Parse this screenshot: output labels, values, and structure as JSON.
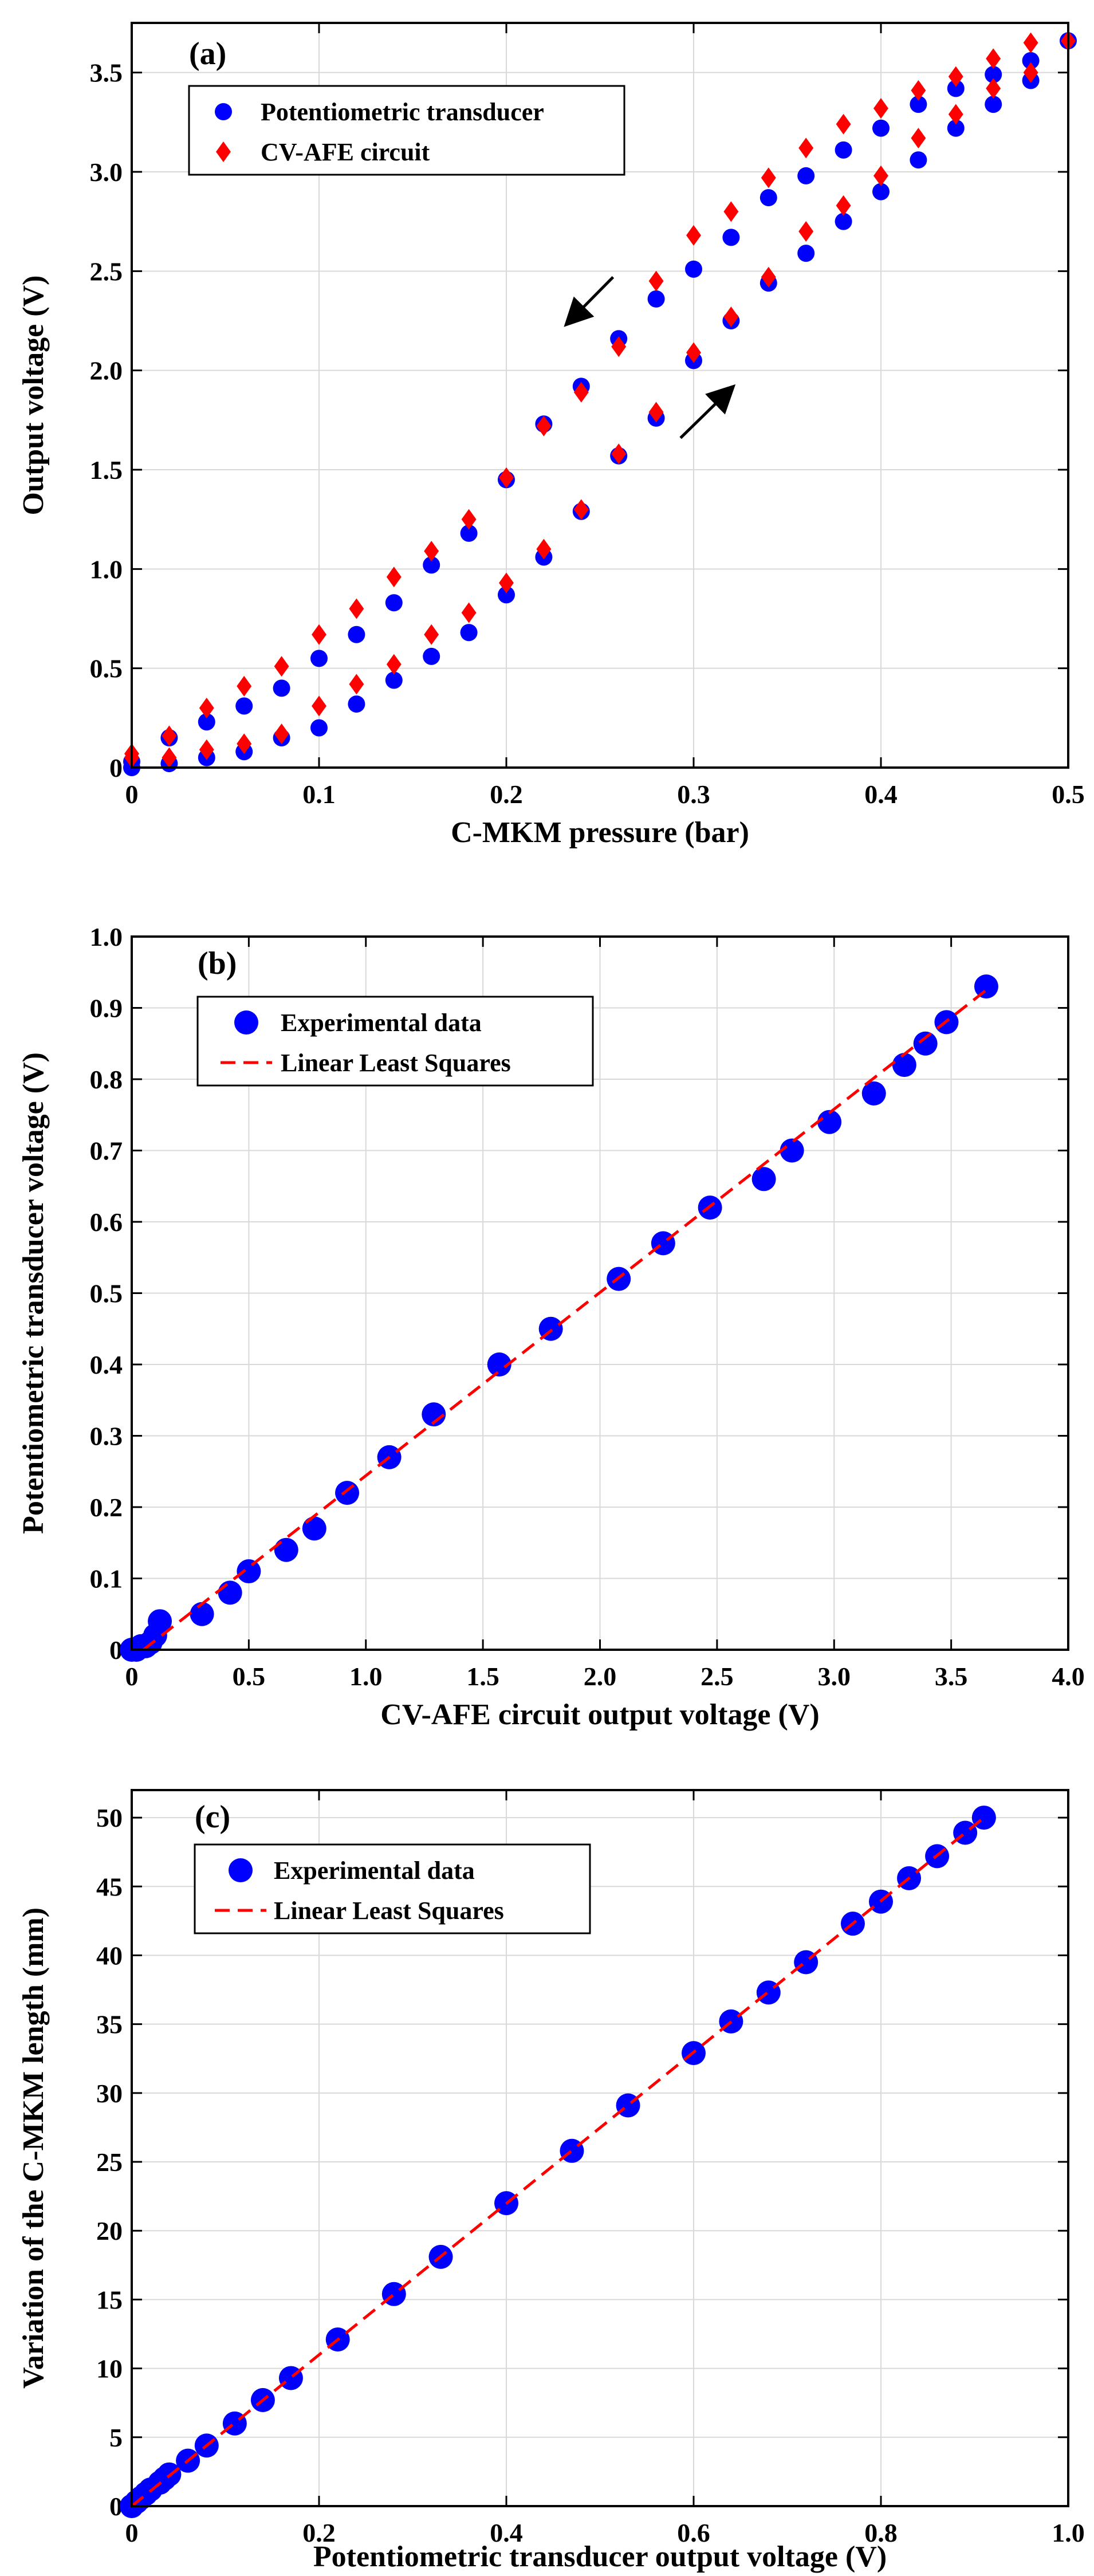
{
  "chart_data": [
    {
      "panel": "(a)",
      "type": "scatter",
      "xlabel": "C-MKM pressure (bar)",
      "ylabel": "Output voltage (V)",
      "xlim": [
        0,
        0.5
      ],
      "ylim": [
        0,
        3.75
      ],
      "xticks": [
        "0",
        "0.1",
        "0.2",
        "0.3",
        "0.4",
        "0.5"
      ],
      "yticks": [
        "0",
        "0.5",
        "1.0",
        "1.5",
        "2.0",
        "2.5",
        "3.0",
        "3.5"
      ],
      "grid": true,
      "legend_position": "top-left",
      "series": [
        {
          "name": "Potentiometric transducer",
          "marker": "circle",
          "color": "#0000ff",
          "x": [
            0,
            0.02,
            0.04,
            0.06,
            0.08,
            0.1,
            0.12,
            0.14,
            0.16,
            0.18,
            0.2,
            0.22,
            0.24,
            0.26,
            0.28,
            0.3,
            0.32,
            0.34,
            0.36,
            0.38,
            0.4,
            0.42,
            0.44,
            0.46,
            0.48,
            0.5,
            0.48,
            0.46,
            0.44,
            0.42,
            0.4,
            0.38,
            0.36,
            0.34,
            0.32,
            0.3,
            0.28,
            0.26,
            0.24,
            0.22,
            0.2,
            0.18,
            0.16,
            0.14,
            0.12,
            0.1,
            0.08,
            0.06,
            0.04,
            0.02,
            0
          ],
          "y": [
            0.0,
            0.02,
            0.05,
            0.08,
            0.15,
            0.2,
            0.32,
            0.44,
            0.56,
            0.68,
            0.87,
            1.06,
            1.29,
            1.57,
            1.76,
            2.05,
            2.25,
            2.44,
            2.59,
            2.75,
            2.9,
            3.06,
            3.22,
            3.34,
            3.46,
            3.66,
            3.56,
            3.49,
            3.42,
            3.34,
            3.22,
            3.11,
            2.98,
            2.87,
            2.67,
            2.51,
            2.36,
            2.16,
            1.92,
            1.73,
            1.45,
            1.18,
            1.02,
            0.83,
            0.67,
            0.55,
            0.4,
            0.31,
            0.23,
            0.15,
            0.03
          ]
        },
        {
          "name": "CV-AFE circuit",
          "marker": "diamond",
          "color": "#ff0000",
          "x": [
            0,
            0.02,
            0.04,
            0.06,
            0.08,
            0.1,
            0.12,
            0.14,
            0.16,
            0.18,
            0.2,
            0.22,
            0.24,
            0.26,
            0.28,
            0.3,
            0.32,
            0.34,
            0.36,
            0.38,
            0.4,
            0.42,
            0.44,
            0.46,
            0.48,
            0.5,
            0.48,
            0.46,
            0.44,
            0.42,
            0.4,
            0.38,
            0.36,
            0.34,
            0.32,
            0.3,
            0.28,
            0.26,
            0.24,
            0.22,
            0.2,
            0.18,
            0.16,
            0.14,
            0.12,
            0.1,
            0.08,
            0.06,
            0.04,
            0.02,
            0
          ],
          "y": [
            0.07,
            0.05,
            0.09,
            0.12,
            0.17,
            0.31,
            0.42,
            0.52,
            0.67,
            0.78,
            0.93,
            1.1,
            1.3,
            1.58,
            1.79,
            2.09,
            2.27,
            2.47,
            2.7,
            2.83,
            2.98,
            3.17,
            3.29,
            3.42,
            3.5,
            3.66,
            3.65,
            3.57,
            3.48,
            3.41,
            3.32,
            3.24,
            3.12,
            2.97,
            2.8,
            2.68,
            2.45,
            2.12,
            1.89,
            1.72,
            1.46,
            1.25,
            1.09,
            0.96,
            0.8,
            0.67,
            0.51,
            0.41,
            0.3,
            0.16,
            0.05
          ]
        }
      ]
    },
    {
      "panel": "(b)",
      "type": "scatter",
      "xlabel": "CV-AFE circuit output voltage (V)",
      "ylabel": "Potentiometric transducer voltage (V)",
      "xlim": [
        0,
        4.0
      ],
      "ylim": [
        0,
        1.0
      ],
      "xticks": [
        "0",
        "0.5",
        "1.0",
        "1.5",
        "2.0",
        "2.5",
        "3.0",
        "3.5",
        "4.0"
      ],
      "yticks": [
        "0",
        "0.1",
        "0.2",
        "0.3",
        "0.4",
        "0.5",
        "0.6",
        "0.7",
        "0.8",
        "0.9",
        "1.0"
      ],
      "grid": true,
      "legend_position": "top-left",
      "series": [
        {
          "name": "Experimental data",
          "marker": "circle",
          "color": "#0000ff",
          "x": [
            0.0,
            0.02,
            0.04,
            0.06,
            0.08,
            0.1,
            0.12,
            0.3,
            0.42,
            0.5,
            0.66,
            0.78,
            0.92,
            1.1,
            1.29,
            1.57,
            1.79,
            2.08,
            2.27,
            2.47,
            2.7,
            2.82,
            2.98,
            3.17,
            3.3,
            3.39,
            3.48,
            3.65
          ],
          "y": [
            0.0,
            0.0,
            0.005,
            0.005,
            0.01,
            0.02,
            0.04,
            0.05,
            0.08,
            0.11,
            0.14,
            0.17,
            0.22,
            0.27,
            0.33,
            0.4,
            0.45,
            0.52,
            0.57,
            0.62,
            0.66,
            0.7,
            0.74,
            0.78,
            0.82,
            0.85,
            0.88,
            0.93
          ]
        },
        {
          "name": "Linear Least Squares",
          "line": "dashed",
          "color": "#ff0000",
          "x": [
            0.05,
            3.65
          ],
          "y": [
            0.0,
            0.925
          ]
        }
      ]
    },
    {
      "panel": "(c)",
      "type": "scatter",
      "xlabel": "Potentiometric transducer output voltage (V)",
      "ylabel": "Variation of the C-MKM length (mm)",
      "xlim": [
        0,
        1.0
      ],
      "ylim": [
        0,
        52
      ],
      "xticks": [
        "0",
        "0.2",
        "0.4",
        "0.6",
        "0.8",
        "1.0"
      ],
      "yticks": [
        "0",
        "5",
        "10",
        "15",
        "20",
        "25",
        "30",
        "35",
        "40",
        "45",
        "50"
      ],
      "grid": true,
      "legend_position": "top-left",
      "series": [
        {
          "name": "Experimental data",
          "marker": "circle",
          "color": "#0000ff",
          "x": [
            0.0,
            0.005,
            0.01,
            0.015,
            0.02,
            0.03,
            0.035,
            0.04,
            0.06,
            0.08,
            0.11,
            0.14,
            0.17,
            0.22,
            0.28,
            0.33,
            0.4,
            0.47,
            0.53,
            0.6,
            0.64,
            0.68,
            0.72,
            0.77,
            0.8,
            0.83,
            0.86,
            0.89,
            0.91
          ],
          "y": [
            0.0,
            0.3,
            0.6,
            0.9,
            1.2,
            1.7,
            2.0,
            2.3,
            3.3,
            4.4,
            6.0,
            7.7,
            9.3,
            12.1,
            15.4,
            18.1,
            22.0,
            25.8,
            29.1,
            32.9,
            35.2,
            37.3,
            39.5,
            42.3,
            43.9,
            45.6,
            47.2,
            48.9,
            50.0
          ]
        },
        {
          "name": "Linear Least Squares",
          "line": "dashed",
          "color": "#ff0000",
          "x": [
            0.0,
            0.91
          ],
          "y": [
            0.0,
            50.0
          ]
        }
      ]
    }
  ]
}
